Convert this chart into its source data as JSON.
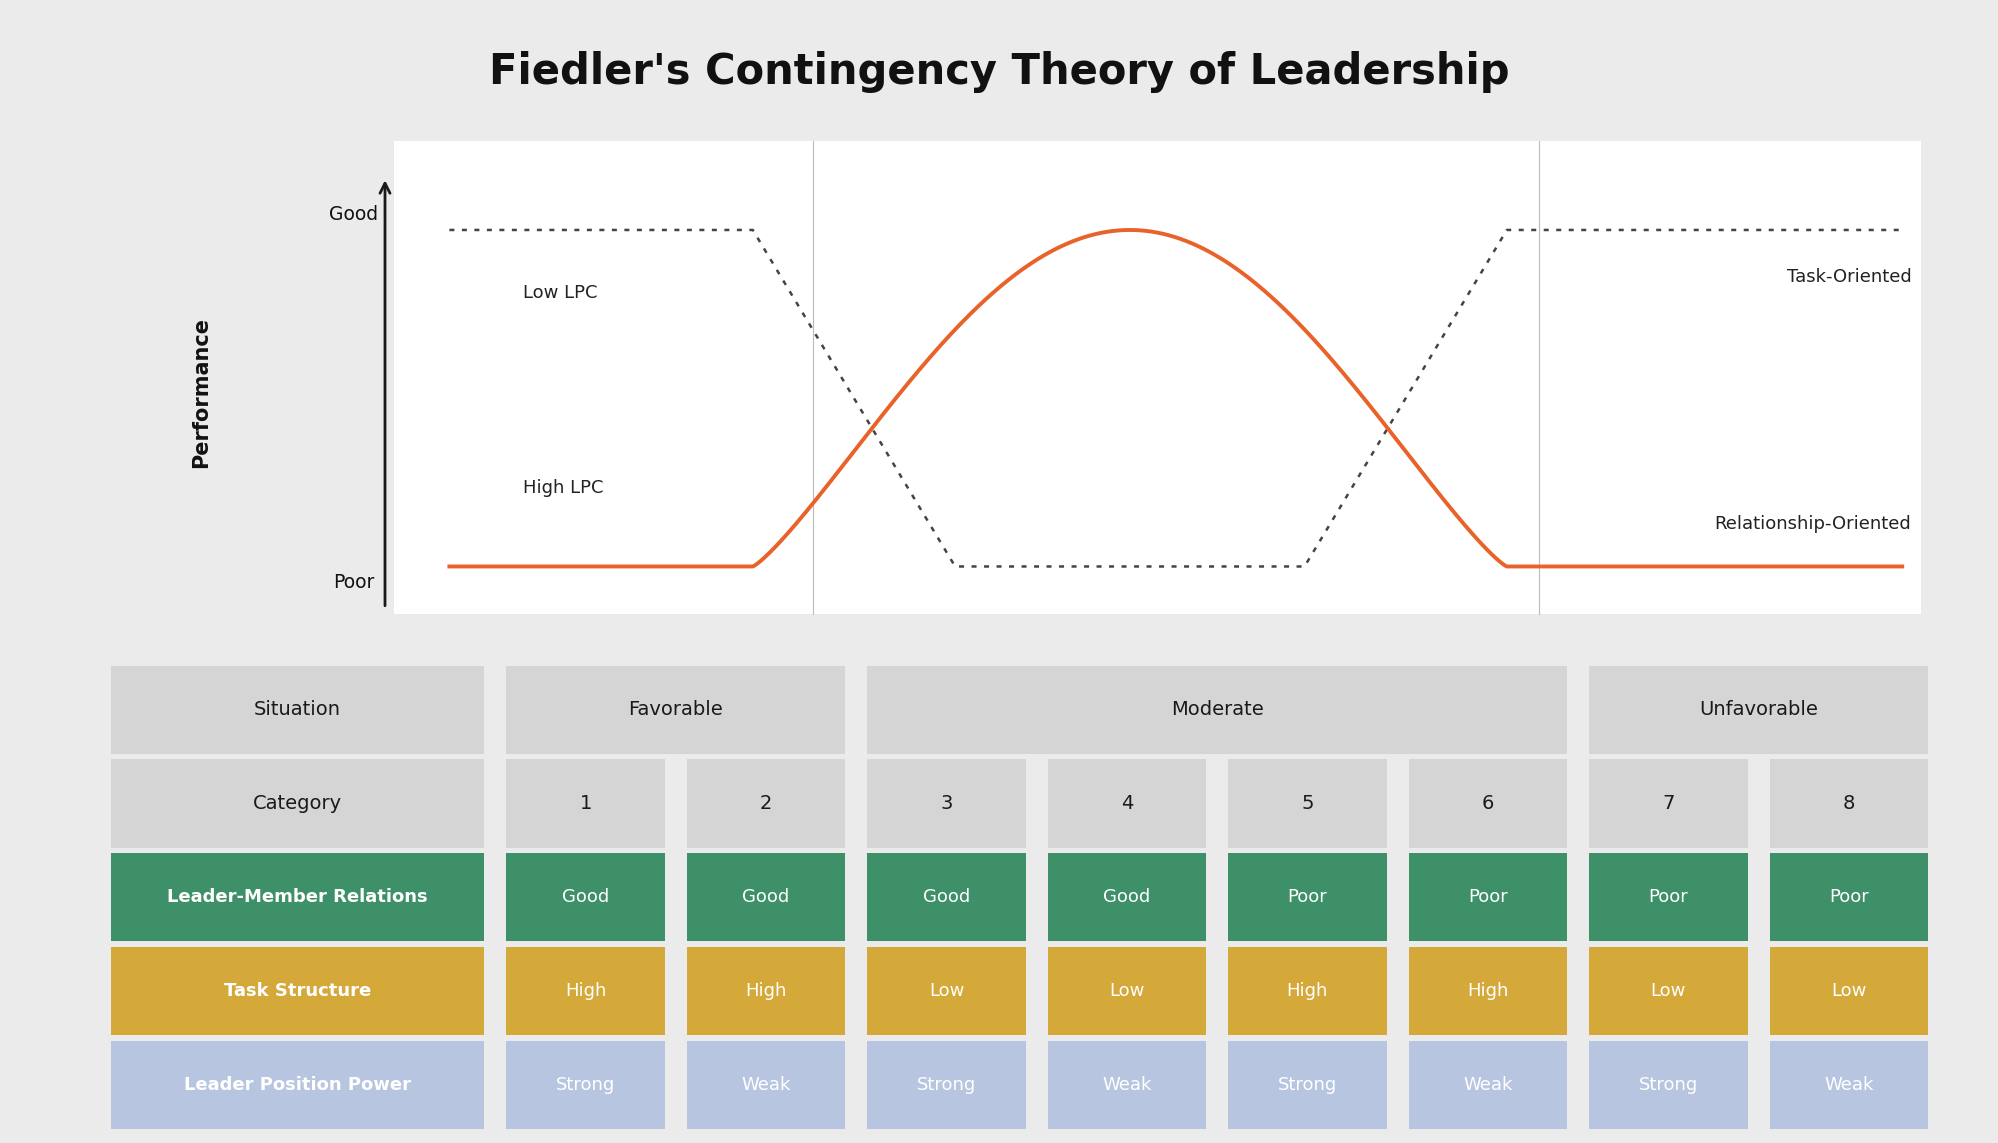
{
  "title": "Fiedler's Contingency Theory of Leadership",
  "title_fontsize": 30,
  "bg_color": "#ebebeb",
  "chart_bg": "#ffffff",
  "arrow_color": "#1a1a1a",
  "curve_color": "#e8622a",
  "dashed_color": "#444444",
  "y_label": "Performance",
  "y_good": "Good",
  "y_poor": "Poor",
  "low_lpc_label": "Low LPC",
  "high_lpc_label": "High LPC",
  "task_oriented_label": "Task-Oriented",
  "relationship_oriented_label": "Relationship-Oriented",
  "situation_label": "Situation",
  "category_label": "Category",
  "categories": [
    "1",
    "2",
    "3",
    "4",
    "5",
    "6",
    "7",
    "8"
  ],
  "row1_label": "Leader-Member Relations",
  "row1_values": [
    "Good",
    "Good",
    "Good",
    "Good",
    "Poor",
    "Poor",
    "Poor",
    "Poor"
  ],
  "row1_bg": "#3d9068",
  "row1_text": "#ffffff",
  "row2_label": "Task Structure",
  "row2_values": [
    "High",
    "High",
    "Low",
    "Low",
    "High",
    "High",
    "Low",
    "Low"
  ],
  "row2_bg": "#d4a93a",
  "row2_text": "#ffffff",
  "row3_label": "Leader Position Power",
  "row3_values": [
    "Strong",
    "Weak",
    "Strong",
    "Weak",
    "Strong",
    "Weak",
    "Strong",
    "Weak"
  ],
  "row3_bg": "#b8c5e0",
  "row3_text": "#ffffff",
  "header_bg": "#d5d5d5",
  "header_text": "#1a1a1a",
  "gap_color": "#ebebeb"
}
